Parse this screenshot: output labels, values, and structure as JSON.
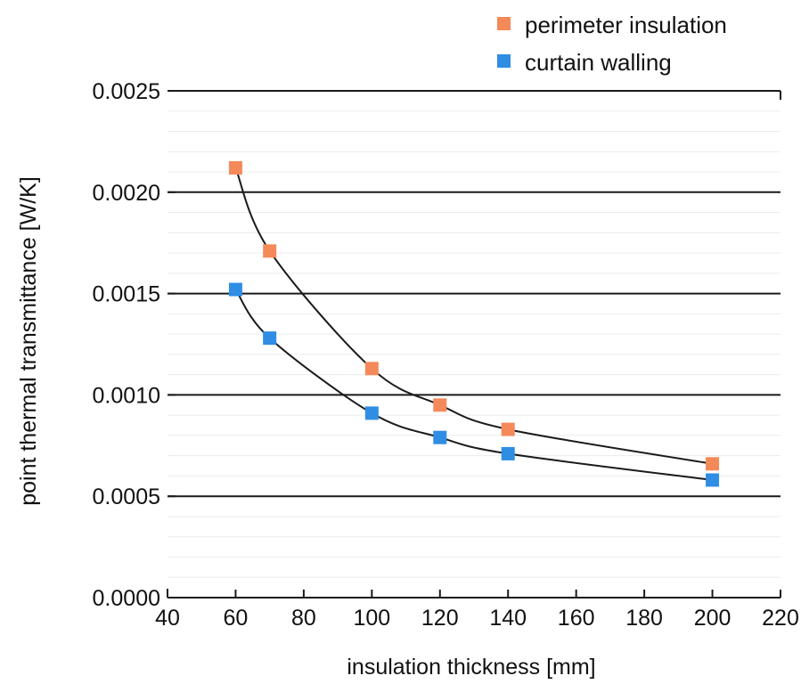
{
  "chart_data": {
    "type": "scatter",
    "title": "",
    "xlabel": "insulation thickness [mm]",
    "ylabel": "point thermal transmittance [W/K]",
    "xlim": [
      40,
      220
    ],
    "ylim": [
      0,
      0.0025
    ],
    "x_ticks": [
      40,
      60,
      80,
      100,
      120,
      140,
      160,
      180,
      200,
      220
    ],
    "x_tick_labels": [
      "40",
      "60",
      "80",
      "100",
      "120",
      "140",
      "160",
      "180",
      "200",
      "220"
    ],
    "y_ticks": [
      0,
      0.0005,
      0.001,
      0.0015,
      0.002,
      0.0025
    ],
    "y_tick_labels": [
      "0.0000",
      "0.0005",
      "0.0010",
      "0.0015",
      "0.0020",
      "0.0025"
    ],
    "grid": true,
    "legend_position": "top-right",
    "trendlines": true,
    "series": [
      {
        "name": "perimeter insulation",
        "color": "#f4895a",
        "marker": "square",
        "x": [
          60,
          70,
          100,
          120,
          140,
          200
        ],
        "y": [
          0.00212,
          0.00171,
          0.00113,
          0.00095,
          0.00083,
          0.00066
        ]
      },
      {
        "name": "curtain walling",
        "color": "#2f8de4",
        "marker": "square",
        "x": [
          60,
          70,
          100,
          120,
          140,
          200
        ],
        "y": [
          0.00152,
          0.00128,
          0.00091,
          0.00079,
          0.00071,
          0.00058
        ]
      }
    ]
  }
}
